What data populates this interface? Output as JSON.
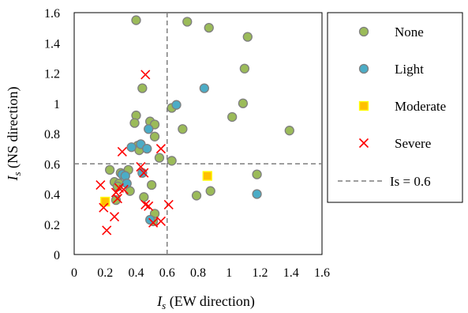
{
  "chart_data": {
    "type": "scatter",
    "xlabel_symbol": "I",
    "xlabel_sub": "s",
    "xlabel_rest": " (EW direction)",
    "ylabel_symbol": "I",
    "ylabel_sub": "s",
    "ylabel_rest": " (NS direction)",
    "xlim": [
      0,
      1.6
    ],
    "ylim": [
      0,
      1.6
    ],
    "x_ticks": [
      "0",
      "0.2",
      "0.4",
      "0.6",
      "0.8",
      "1",
      "1.2",
      "1.4",
      "1.6"
    ],
    "y_ticks": [
      "0",
      "0.2",
      "0.4",
      "0.6",
      "0.8",
      "1",
      "1.2",
      "1.4",
      "1.6"
    ],
    "grid": false,
    "legend_position": "right",
    "reference_lines": {
      "vertical_x": 0.6,
      "horizontal_y": 0.6,
      "label": "Is = 0.6",
      "color": "#7f7f7f"
    },
    "series": [
      {
        "name": "None",
        "marker": "circle",
        "color": "#9bbb59",
        "edge": "#7f7f7f",
        "points": [
          [
            0.4,
            1.55
          ],
          [
            0.73,
            1.54
          ],
          [
            0.87,
            1.5
          ],
          [
            1.12,
            1.44
          ],
          [
            1.1,
            1.23
          ],
          [
            0.44,
            1.1
          ],
          [
            1.09,
            1.0
          ],
          [
            0.63,
            0.97
          ],
          [
            1.02,
            0.91
          ],
          [
            0.4,
            0.92
          ],
          [
            0.39,
            0.87
          ],
          [
            0.49,
            0.88
          ],
          [
            0.52,
            0.86
          ],
          [
            0.7,
            0.83
          ],
          [
            1.39,
            0.82
          ],
          [
            0.52,
            0.78
          ],
          [
            0.41,
            0.72
          ],
          [
            0.42,
            0.69
          ],
          [
            0.55,
            0.64
          ],
          [
            0.63,
            0.62
          ],
          [
            0.23,
            0.56
          ],
          [
            0.35,
            0.56
          ],
          [
            1.18,
            0.53
          ],
          [
            0.3,
            0.54
          ],
          [
            0.26,
            0.48
          ],
          [
            0.29,
            0.47
          ],
          [
            0.5,
            0.46
          ],
          [
            0.28,
            0.45
          ],
          [
            0.36,
            0.42
          ],
          [
            0.88,
            0.42
          ],
          [
            0.79,
            0.39
          ],
          [
            0.45,
            0.38
          ],
          [
            0.27,
            0.36
          ],
          [
            0.52,
            0.27
          ],
          [
            0.51,
            0.22
          ]
        ]
      },
      {
        "name": "Light",
        "marker": "circle",
        "color": "#4bacc6",
        "edge": "#7f7f7f",
        "points": [
          [
            0.84,
            1.1
          ],
          [
            0.66,
            0.99
          ],
          [
            0.48,
            0.83
          ],
          [
            0.37,
            0.71
          ],
          [
            0.43,
            0.73
          ],
          [
            0.47,
            0.7
          ],
          [
            0.44,
            0.54
          ],
          [
            0.31,
            0.53
          ],
          [
            0.33,
            0.52
          ],
          [
            0.34,
            0.47
          ],
          [
            1.18,
            0.4
          ],
          [
            0.49,
            0.23
          ]
        ]
      },
      {
        "name": "Moderate",
        "marker": "square",
        "color": "#ffc000",
        "edge": "#ffff00",
        "points": [
          [
            0.86,
            0.52
          ],
          [
            0.2,
            0.35
          ]
        ]
      },
      {
        "name": "Severe",
        "marker": "x",
        "color": "#ff0000",
        "points": [
          [
            0.46,
            1.19
          ],
          [
            0.31,
            0.68
          ],
          [
            0.56,
            0.7
          ],
          [
            0.43,
            0.58
          ],
          [
            0.45,
            0.54
          ],
          [
            0.17,
            0.46
          ],
          [
            0.29,
            0.44
          ],
          [
            0.27,
            0.41
          ],
          [
            0.32,
            0.43
          ],
          [
            0.28,
            0.37
          ],
          [
            0.46,
            0.33
          ],
          [
            0.48,
            0.32
          ],
          [
            0.61,
            0.33
          ],
          [
            0.19,
            0.31
          ],
          [
            0.26,
            0.25
          ],
          [
            0.56,
            0.22
          ],
          [
            0.51,
            0.21
          ],
          [
            0.21,
            0.16
          ]
        ]
      }
    ]
  }
}
